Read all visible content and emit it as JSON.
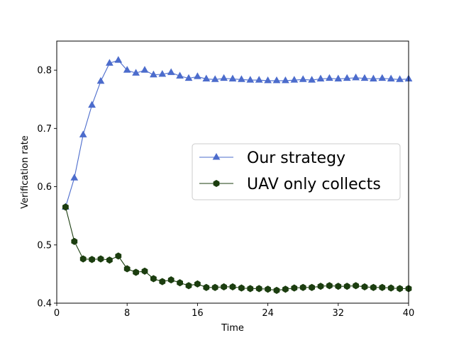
{
  "chart_data": {
    "type": "line",
    "title": "",
    "xlabel": "Time",
    "ylabel": "Verification rate",
    "xlim": [
      0,
      40
    ],
    "ylim": [
      0.4,
      0.85
    ],
    "xticks": [
      0,
      8,
      16,
      24,
      32,
      40
    ],
    "yticks": [
      0.4,
      0.5,
      0.6,
      0.7,
      0.8
    ],
    "xtick_labels": [
      "0",
      "8",
      "16",
      "24",
      "32",
      "40"
    ],
    "ytick_labels": [
      "0.4",
      "0.5",
      "0.6",
      "0.7",
      "0.8"
    ],
    "grid": false,
    "legend_position": "center-right",
    "x": [
      1,
      2,
      3,
      4,
      5,
      6,
      7,
      8,
      9,
      10,
      11,
      12,
      13,
      14,
      15,
      16,
      17,
      18,
      19,
      20,
      21,
      22,
      23,
      24,
      25,
      26,
      27,
      28,
      29,
      30,
      31,
      32,
      33,
      34,
      35,
      36,
      37,
      38,
      39,
      40
    ],
    "series": [
      {
        "name": "Our strategy",
        "color": "#4c6ccc",
        "marker": "triangle",
        "values": [
          0.565,
          0.615,
          0.689,
          0.74,
          0.781,
          0.812,
          0.817,
          0.8,
          0.795,
          0.8,
          0.792,
          0.793,
          0.796,
          0.79,
          0.786,
          0.789,
          0.785,
          0.784,
          0.786,
          0.785,
          0.784,
          0.783,
          0.783,
          0.782,
          0.782,
          0.782,
          0.783,
          0.784,
          0.783,
          0.785,
          0.786,
          0.785,
          0.786,
          0.787,
          0.786,
          0.785,
          0.786,
          0.785,
          0.784,
          0.785
        ]
      },
      {
        "name": "UAV only collects",
        "color": "#1b3d0f",
        "marker": "hexagon",
        "values": [
          0.565,
          0.506,
          0.476,
          0.475,
          0.476,
          0.474,
          0.481,
          0.459,
          0.453,
          0.455,
          0.442,
          0.437,
          0.44,
          0.435,
          0.43,
          0.433,
          0.427,
          0.427,
          0.428,
          0.428,
          0.426,
          0.425,
          0.425,
          0.424,
          0.422,
          0.424,
          0.426,
          0.427,
          0.427,
          0.429,
          0.43,
          0.429,
          0.429,
          0.43,
          0.428,
          0.427,
          0.427,
          0.426,
          0.425,
          0.425
        ]
      }
    ]
  }
}
